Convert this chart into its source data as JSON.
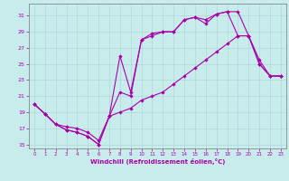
{
  "xlabel": "Windchill (Refroidissement éolien,°C)",
  "bg_color": "#c8ecec",
  "grid_color": "#b0d8d8",
  "line_color": "#aa00aa",
  "spine_color": "#888888",
  "xlim": [
    -0.5,
    23.5
  ],
  "ylim": [
    14.5,
    32.5
  ],
  "yticks": [
    15,
    17,
    19,
    21,
    23,
    25,
    27,
    29,
    31
  ],
  "xticks": [
    0,
    1,
    2,
    3,
    4,
    5,
    6,
    7,
    8,
    9,
    10,
    11,
    12,
    13,
    14,
    15,
    16,
    17,
    18,
    19,
    20,
    21,
    22,
    23
  ],
  "line1_x": [
    0,
    1,
    2,
    3,
    4,
    5,
    6,
    7,
    8,
    9,
    10,
    11,
    12,
    13,
    14,
    15,
    16,
    17,
    18,
    19,
    20,
    21,
    22,
    23
  ],
  "line1_y": [
    20.0,
    18.8,
    17.5,
    16.8,
    16.5,
    16.0,
    15.0,
    18.5,
    26.0,
    21.5,
    28.0,
    28.8,
    29.0,
    29.0,
    30.5,
    30.8,
    30.5,
    31.2,
    31.5,
    31.5,
    28.5,
    25.0,
    23.5,
    23.5
  ],
  "line2_x": [
    0,
    1,
    2,
    3,
    4,
    5,
    6,
    7,
    8,
    9,
    10,
    11,
    12,
    13,
    14,
    15,
    16,
    17,
    18,
    19,
    20,
    21,
    22,
    23
  ],
  "line2_y": [
    20.0,
    18.8,
    17.5,
    16.8,
    16.5,
    16.0,
    15.0,
    18.5,
    21.5,
    21.0,
    28.0,
    28.5,
    29.0,
    29.0,
    30.5,
    30.8,
    30.0,
    31.2,
    31.5,
    28.5,
    28.5,
    25.0,
    23.5,
    23.5
  ],
  "line3_x": [
    0,
    1,
    2,
    3,
    4,
    5,
    6,
    7,
    8,
    9,
    10,
    11,
    12,
    13,
    14,
    15,
    16,
    17,
    18,
    19,
    20,
    21,
    22,
    23
  ],
  "line3_y": [
    20.0,
    18.8,
    17.5,
    17.2,
    17.0,
    16.5,
    15.5,
    18.5,
    19.0,
    19.5,
    20.5,
    21.0,
    21.5,
    22.5,
    23.5,
    24.5,
    25.5,
    26.5,
    27.5,
    28.5,
    28.5,
    25.5,
    23.5,
    23.5
  ]
}
